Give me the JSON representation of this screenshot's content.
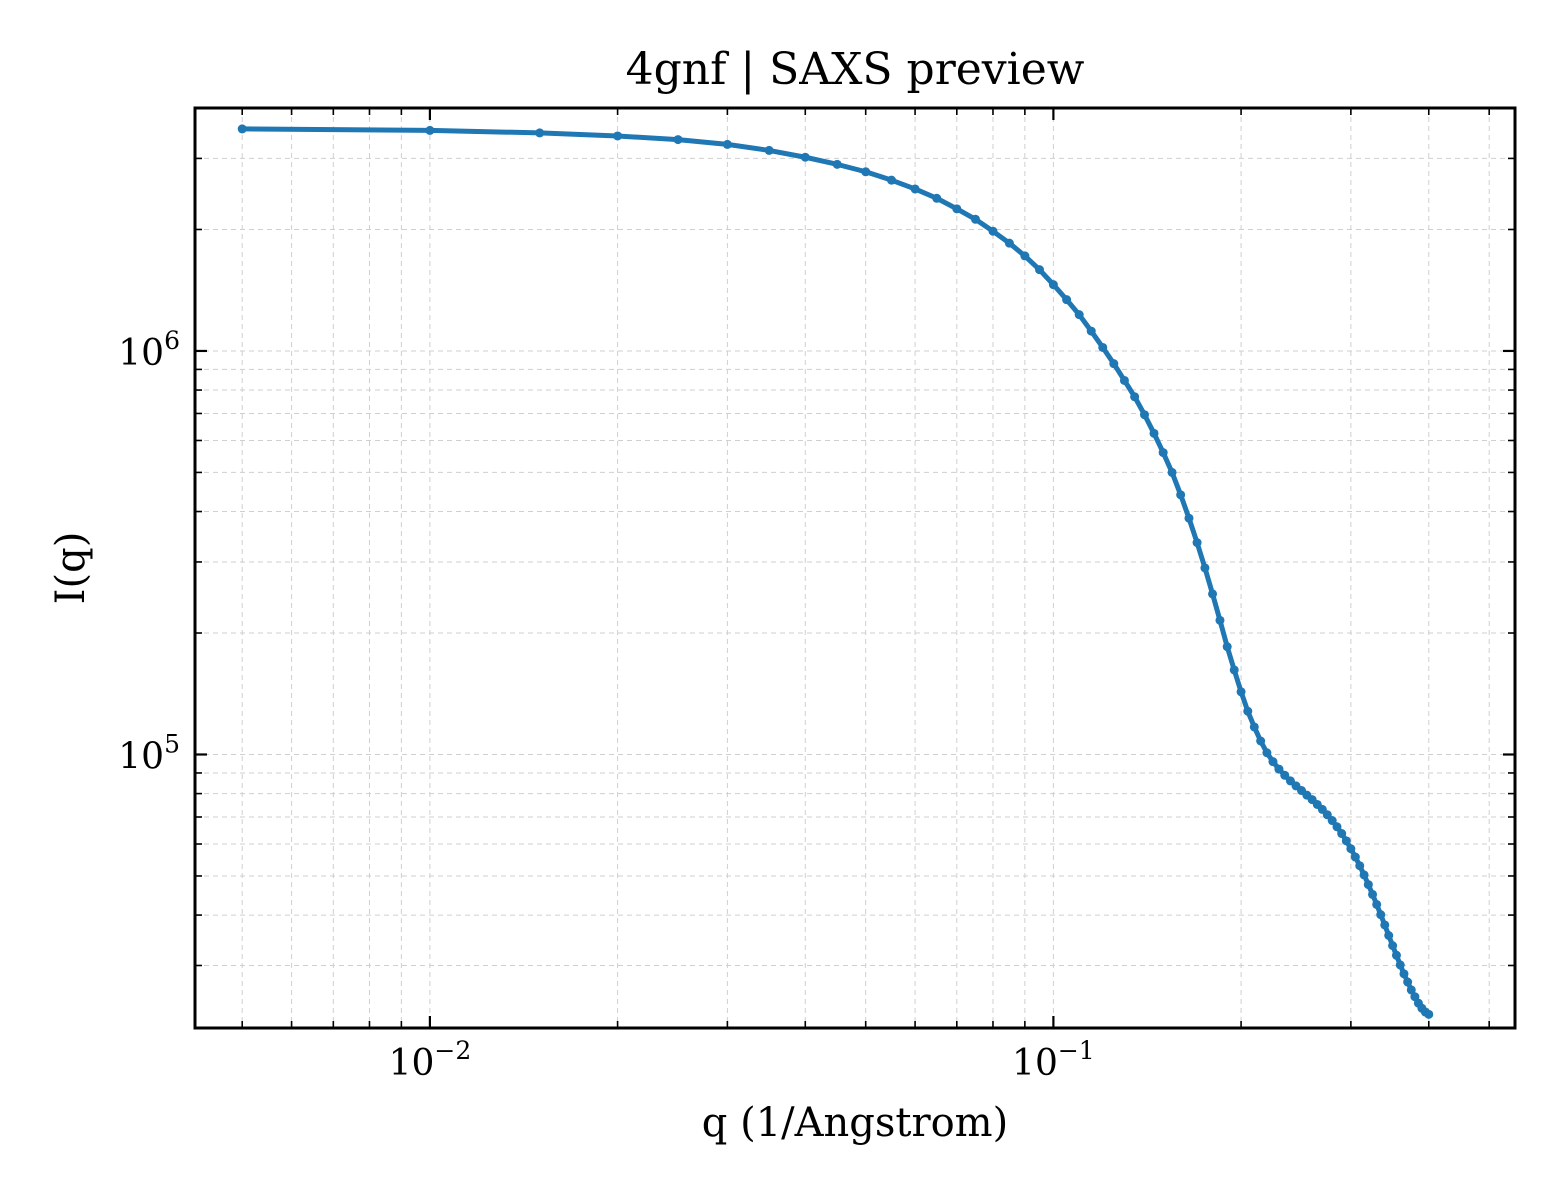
{
  "chart_data": {
    "type": "line",
    "title": "4gnf | SAXS preview",
    "xlabel": "q (1/Angstrom)",
    "ylabel": "I(q)",
    "x_scale": "log",
    "y_scale": "log",
    "xlim": [
      0.0042,
      0.55
    ],
    "ylim": [
      21000,
      4000000
    ],
    "x_ticks": [
      {
        "value": 0.01,
        "base": "10",
        "exp": "−2"
      },
      {
        "value": 0.1,
        "base": "10",
        "exp": "−1"
      }
    ],
    "y_ticks": [
      {
        "value": 100000,
        "base": "10",
        "exp": "5"
      },
      {
        "value": 1000000,
        "base": "10",
        "exp": "6"
      }
    ],
    "grid": true,
    "markers": true,
    "series": [
      {
        "color": "#1f77b4",
        "points": [
          [
            0.005,
            3550000
          ],
          [
            0.01,
            3520000
          ],
          [
            0.015,
            3470000
          ],
          [
            0.02,
            3410000
          ],
          [
            0.025,
            3340000
          ],
          [
            0.03,
            3250000
          ],
          [
            0.035,
            3140000
          ],
          [
            0.04,
            3020000
          ],
          [
            0.045,
            2900000
          ],
          [
            0.05,
            2780000
          ],
          [
            0.055,
            2650000
          ],
          [
            0.06,
            2520000
          ],
          [
            0.065,
            2390000
          ],
          [
            0.07,
            2250000
          ],
          [
            0.075,
            2120000
          ],
          [
            0.08,
            1980000
          ],
          [
            0.085,
            1850000
          ],
          [
            0.09,
            1720000
          ],
          [
            0.095,
            1590000
          ],
          [
            0.1,
            1460000
          ],
          [
            0.105,
            1340000
          ],
          [
            0.11,
            1230000
          ],
          [
            0.115,
            1120000
          ],
          [
            0.12,
            1020000
          ],
          [
            0.125,
            930000
          ],
          [
            0.13,
            845000
          ],
          [
            0.135,
            770000
          ],
          [
            0.14,
            695000
          ],
          [
            0.145,
            625000
          ],
          [
            0.15,
            560000
          ],
          [
            0.155,
            500000
          ],
          [
            0.16,
            440000
          ],
          [
            0.165,
            385000
          ],
          [
            0.17,
            335000
          ],
          [
            0.175,
            290000
          ],
          [
            0.18,
            250000
          ],
          [
            0.185,
            215000
          ],
          [
            0.19,
            185000
          ],
          [
            0.195,
            162000
          ],
          [
            0.2,
            143000
          ],
          [
            0.205,
            128000
          ],
          [
            0.21,
            117000
          ],
          [
            0.215,
            108000
          ],
          [
            0.22,
            101000
          ],
          [
            0.225,
            96000
          ],
          [
            0.23,
            92000
          ],
          [
            0.235,
            88800
          ],
          [
            0.24,
            86000
          ],
          [
            0.245,
            83600
          ],
          [
            0.25,
            81400
          ],
          [
            0.255,
            79300
          ],
          [
            0.26,
            77300
          ],
          [
            0.265,
            75200
          ],
          [
            0.27,
            73100
          ],
          [
            0.275,
            70900
          ],
          [
            0.28,
            68600
          ],
          [
            0.285,
            66200
          ],
          [
            0.29,
            63700
          ],
          [
            0.295,
            61100
          ],
          [
            0.3,
            58400
          ],
          [
            0.305,
            55700
          ],
          [
            0.31,
            53000
          ],
          [
            0.315,
            50300
          ],
          [
            0.32,
            47600
          ],
          [
            0.325,
            45000
          ],
          [
            0.33,
            42500
          ],
          [
            0.335,
            40100
          ],
          [
            0.34,
            37800
          ],
          [
            0.345,
            35600
          ],
          [
            0.35,
            33600
          ],
          [
            0.355,
            31800
          ],
          [
            0.36,
            30100
          ],
          [
            0.365,
            28600
          ],
          [
            0.37,
            27300
          ],
          [
            0.375,
            26100
          ],
          [
            0.38,
            25100
          ],
          [
            0.385,
            24200
          ],
          [
            0.39,
            23500
          ],
          [
            0.395,
            23000
          ],
          [
            0.4,
            22700
          ]
        ]
      }
    ]
  }
}
